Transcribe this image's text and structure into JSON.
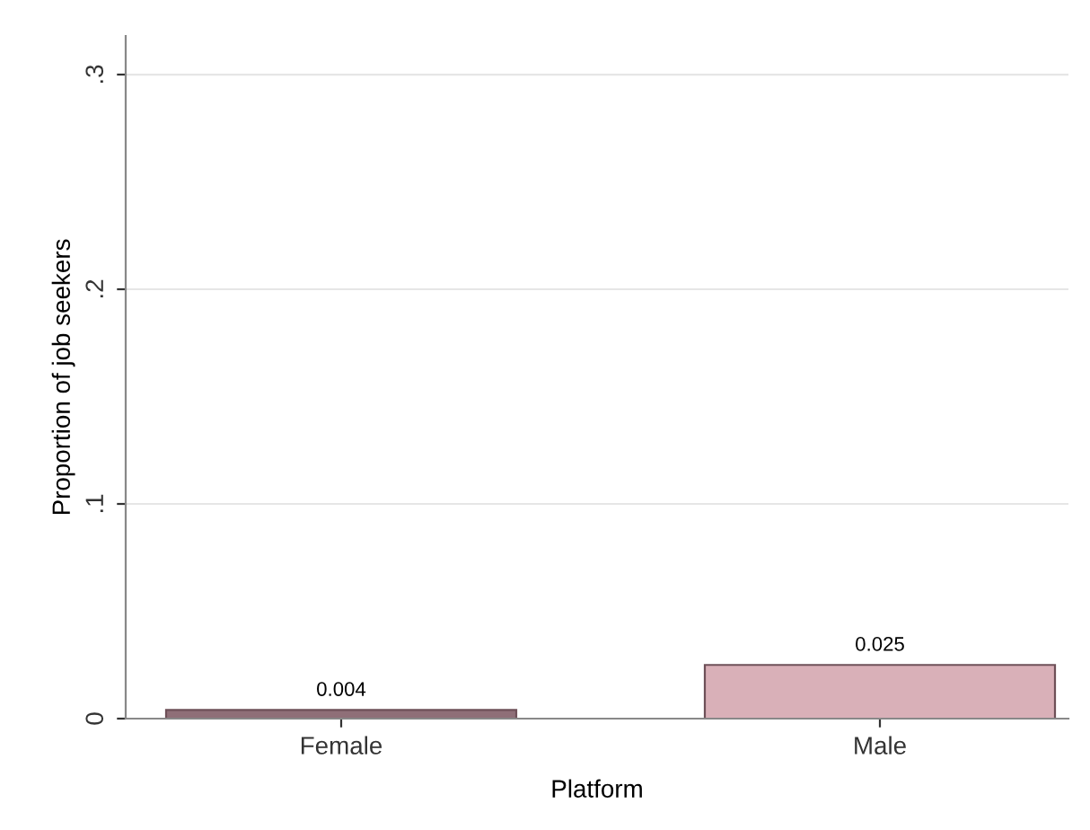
{
  "chart_data": {
    "type": "bar",
    "xlabel": "Platform",
    "ylabel": "Proportion of job seekers",
    "categories": [
      "Female",
      "Male"
    ],
    "values": [
      0.004,
      0.025
    ],
    "colors": [
      "#8f6f78",
      "#d9b0b8"
    ],
    "ylim": [
      0,
      0.318
    ],
    "yticks": [
      {
        "value": 0,
        "label": "0"
      },
      {
        "value": 0.1,
        "label": ".1"
      },
      {
        "value": 0.2,
        "label": ".2"
      },
      {
        "value": 0.3,
        "label": ".3"
      }
    ],
    "grid": "y",
    "data_labels": true
  }
}
